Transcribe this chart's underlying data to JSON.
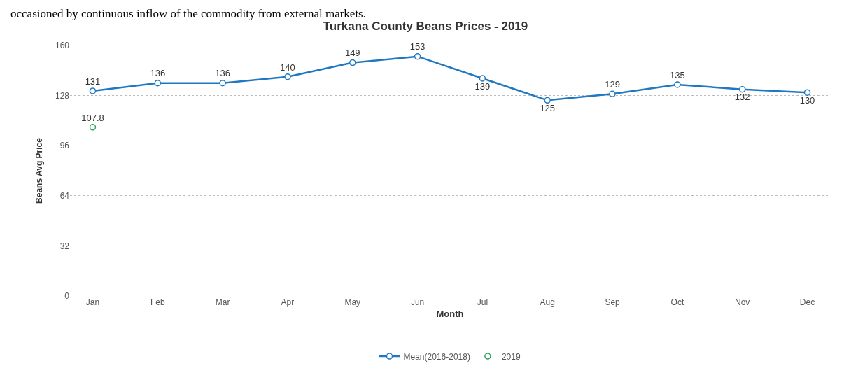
{
  "chart_data": {
    "type": "line",
    "title": "Turkana County Beans Prices - 2019",
    "xlabel": "Month",
    "ylabel": "Beans Avg Price",
    "annotations": [
      "occasioned by continuous inflow of the commodity from external markets."
    ],
    "categories": [
      "Jan",
      "Feb",
      "Mar",
      "Apr",
      "May",
      "Jun",
      "Jul",
      "Aug",
      "Sep",
      "Oct",
      "Nov",
      "Dec"
    ],
    "series": [
      {
        "name": "Mean(2016-2018)",
        "color": "#1f78c1",
        "values": [
          131,
          136,
          136,
          140,
          149,
          153,
          139,
          125,
          129,
          135,
          132,
          130
        ]
      },
      {
        "name": "2019",
        "type": "scatter",
        "color": "#2ca25f",
        "values": [
          107.8,
          null,
          null,
          null,
          null,
          null,
          null,
          null,
          null,
          null,
          null,
          null
        ]
      }
    ],
    "ylim": [
      0,
      160
    ],
    "yticks": [
      0,
      32,
      64,
      96,
      128,
      160
    ],
    "grid": "y",
    "legend": "bottom",
    "marker": "circle",
    "data_labels": true
  }
}
